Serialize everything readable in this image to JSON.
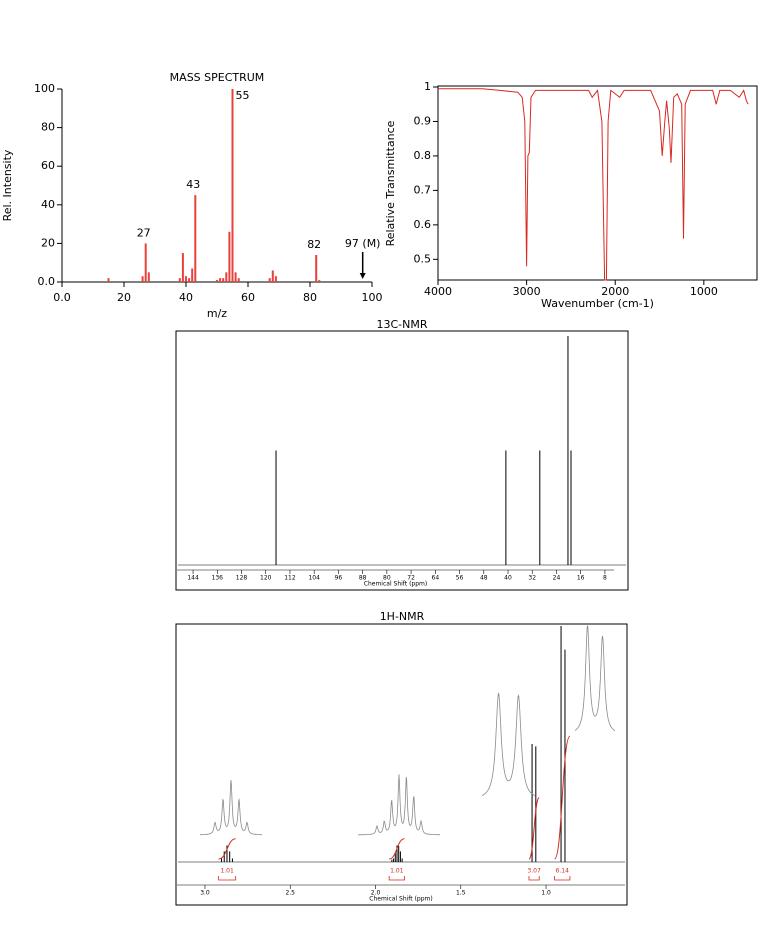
{
  "chart_data": [
    {
      "type": "bar",
      "title": "MASS SPECTRUM",
      "x_label": "m/z",
      "y_label": "Rel. Intensity",
      "x": [
        15,
        26,
        27,
        28,
        38,
        39,
        40,
        41,
        42,
        43,
        50,
        51,
        52,
        53,
        54,
        55,
        56,
        57,
        67,
        68,
        69,
        82,
        83
      ],
      "values": [
        2,
        3,
        20,
        5,
        2,
        15,
        3,
        2,
        7,
        45,
        1,
        2,
        2,
        5,
        26,
        100,
        5,
        2,
        2,
        6,
        3,
        14,
        1
      ],
      "color": "#e8403a",
      "xlim": [
        0,
        100
      ],
      "ylim": [
        0,
        100
      ],
      "xticks": [
        {
          "value": 0,
          "label": "0.0"
        },
        20,
        40,
        60,
        80,
        100
      ],
      "yticks": [
        {
          "value": 0,
          "label": "0.0"
        },
        20,
        40,
        60,
        80,
        100
      ],
      "annotations": [
        {
          "text": "27",
          "x": 27
        },
        {
          "text": "43",
          "x": 43
        },
        {
          "text": "55",
          "x": 55
        },
        {
          "text": "82",
          "x": 82
        },
        {
          "text": "97 (M)",
          "x": 97,
          "arrow": true
        }
      ]
    },
    {
      "type": "line",
      "x_label": "Wavenumber (cm-1)",
      "y_label": "Relative Transmittance",
      "x": [
        4000,
        3500,
        3300,
        3100,
        3050,
        3020,
        3000,
        2985,
        2970,
        2950,
        2900,
        2500,
        2300,
        2260,
        2200,
        2150,
        2120,
        2100,
        2080,
        2050,
        1950,
        1900,
        1600,
        1500,
        1470,
        1440,
        1420,
        1390,
        1370,
        1340,
        1300,
        1250,
        1230,
        1210,
        1150,
        900,
        860,
        820,
        700,
        650,
        600,
        550,
        520,
        500
      ],
      "values": [
        0.995,
        0.995,
        0.99,
        0.985,
        0.97,
        0.9,
        0.48,
        0.8,
        0.81,
        0.97,
        0.99,
        0.99,
        0.99,
        0.97,
        0.99,
        0.9,
        0.44,
        0.44,
        0.9,
        0.99,
        0.97,
        0.99,
        0.99,
        0.93,
        0.8,
        0.9,
        0.96,
        0.88,
        0.78,
        0.97,
        0.98,
        0.95,
        0.56,
        0.95,
        0.99,
        0.99,
        0.95,
        0.99,
        0.99,
        0.98,
        0.97,
        0.99,
        0.96,
        0.95
      ],
      "color": "#d62a22",
      "xlim": [
        4000,
        400
      ],
      "ylim": [
        0.44,
        1
      ],
      "xticks": [
        4000,
        3000,
        2000,
        1000
      ],
      "yticks": [
        0.5,
        0.6,
        0.7,
        0.8,
        0.9,
        1
      ]
    },
    {
      "type": "stick",
      "title": "13C-NMR",
      "x_label": "Chemical Shift (ppm)",
      "x": [
        116.6,
        40.7,
        29.5,
        20.2,
        19.2
      ],
      "values": [
        0.5,
        0.5,
        0.5,
        1,
        0.5
      ],
      "color": "#000000",
      "xlim": [
        149.3,
        5
      ],
      "ylim": [
        0,
        1
      ],
      "xticks": [
        144,
        136,
        128,
        120,
        112,
        104,
        96,
        88,
        80,
        72,
        64,
        56,
        48,
        40,
        32,
        24,
        16,
        8
      ]
    },
    {
      "type": "nmr",
      "title": "1H-NMR",
      "x_label": "Chemical Shift (ppm)",
      "x": [
        2.903,
        2.887,
        2.871,
        2.855,
        2.839,
        1.904,
        1.894,
        1.884,
        1.874,
        1.864,
        1.854,
        1.844,
        1.082,
        1.06,
        0.912,
        0.889
      ],
      "values": [
        0.015,
        0.045,
        0.07,
        0.045,
        0.015,
        0.01,
        0.015,
        0.04,
        0.07,
        0.068,
        0.045,
        0.015,
        0.5,
        0.49,
        1,
        0.9
      ],
      "color": "#000000",
      "integral_color": "#d42a1e",
      "xlim": [
        3.164,
        0.537
      ],
      "ylim": [
        0,
        1
      ],
      "xticks": [
        {
          "value": 3,
          "label": "3.0"
        },
        2.5,
        {
          "value": 2,
          "label": "2.0"
        },
        1.5,
        {
          "value": 1,
          "label": "1.0"
        }
      ],
      "integrals": [
        {
          "value": 1.01,
          "x": [
            2.92,
            2.82
          ]
        },
        {
          "value": 1.01,
          "x": [
            1.92,
            1.83
          ]
        },
        {
          "value": 3.07,
          "x": [
            1.1,
            1.04
          ]
        },
        {
          "value": 6.14,
          "x": [
            0.95,
            0.86
          ]
        }
      ]
    }
  ]
}
